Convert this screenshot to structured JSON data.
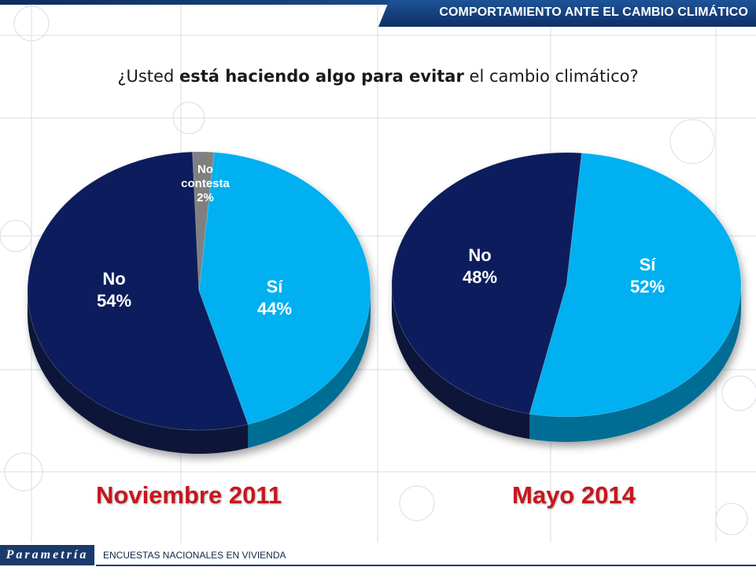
{
  "header": {
    "title": "COMPORTAMIENTO ANTE EL CAMBIO CLIMÁTICO"
  },
  "question": {
    "prefix": "¿Usted ",
    "bold": "está haciendo algo para evitar",
    "suffix": " el cambio climático?"
  },
  "footer": {
    "logo": "Parametría",
    "text": "ENCUESTAS NACIONALES EN VIVIENDA"
  },
  "colors": {
    "no": "#0d1f5c",
    "si": "#00b0f0",
    "no_contesta": "#808080",
    "period_label": "#c7161d"
  },
  "chart_data": [
    {
      "type": "pie",
      "title": "Noviembre 2011",
      "slices": [
        {
          "label": "Sí",
          "value": 44,
          "display": "44%",
          "color": "#00b0f0"
        },
        {
          "label": "No",
          "value": 54,
          "display": "54%",
          "color": "#0d1f5c"
        },
        {
          "label": "No contesta",
          "value": 2,
          "display": "2%",
          "color": "#808080"
        }
      ]
    },
    {
      "type": "pie",
      "title": "Mayo 2014",
      "slices": [
        {
          "label": "Sí",
          "value": 52,
          "display": "52%",
          "color": "#00b0f0"
        },
        {
          "label": "No",
          "value": 48,
          "display": "48%",
          "color": "#0d1f5c"
        }
      ]
    }
  ]
}
